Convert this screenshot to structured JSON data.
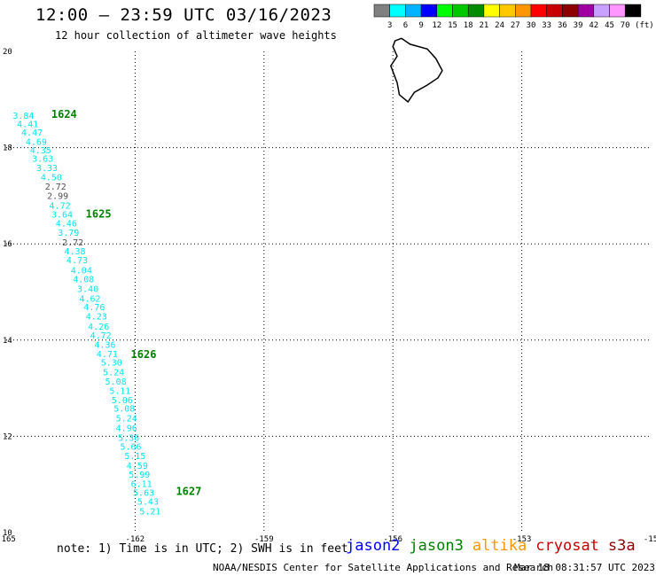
{
  "title": "12:00 – 23:59 UTC 03/16/2023",
  "subtitle": "12 hour collection of altimeter wave heights",
  "legend": {
    "colors": [
      "#808080",
      "#00ffff",
      "#00b4ff",
      "#0000ff",
      "#00ff00",
      "#00c800",
      "#008c00",
      "#ffff00",
      "#ffc800",
      "#ff9600",
      "#ff0000",
      "#c80000",
      "#8c0000",
      "#a000a0",
      "#c8a0ff",
      "#ff96ff",
      "#000000"
    ],
    "labels": [
      "3",
      "6",
      "9",
      "12",
      "15",
      "18",
      "21",
      "24",
      "27",
      "30",
      "33",
      "36",
      "39",
      "42",
      "45",
      "70"
    ],
    "unit": "(ft)"
  },
  "axes": {
    "x_labels": [
      "-165",
      "-162",
      "-159",
      "-156",
      "-153",
      "-15"
    ],
    "y_labels": [
      "20",
      "18",
      "16",
      "14",
      "12",
      "10"
    ],
    "x_range": [
      -165,
      -150
    ],
    "y_range": [
      10,
      20
    ]
  },
  "colors": {
    "cyan": "#00e5ee",
    "gray": "#505050",
    "green": "#008000",
    "land": "#000000"
  },
  "track": [
    {
      "v": "3.84",
      "lon": -164.6,
      "lat": 18.6,
      "c": "cyan"
    },
    {
      "v": "4.41",
      "lon": -164.5,
      "lat": 18.43,
      "c": "cyan"
    },
    {
      "v": "4.47",
      "lon": -164.4,
      "lat": 18.25,
      "c": "cyan"
    },
    {
      "v": "4.69",
      "lon": -164.3,
      "lat": 18.06,
      "c": "cyan"
    },
    {
      "v": "4.35",
      "lon": -164.2,
      "lat": 17.88,
      "c": "cyan"
    },
    {
      "v": "3.63",
      "lon": -164.15,
      "lat": 17.71,
      "c": "cyan"
    },
    {
      "v": "3.33",
      "lon": -164.05,
      "lat": 17.51,
      "c": "cyan"
    },
    {
      "v": "4.50",
      "lon": -163.95,
      "lat": 17.32,
      "c": "cyan"
    },
    {
      "v": "2.72",
      "lon": -163.85,
      "lat": 17.13,
      "c": "gray"
    },
    {
      "v": "2.99",
      "lon": -163.8,
      "lat": 16.93,
      "c": "gray"
    },
    {
      "v": "4.72",
      "lon": -163.75,
      "lat": 16.73,
      "c": "cyan"
    },
    {
      "v": "3.64",
      "lon": -163.7,
      "lat": 16.55,
      "c": "cyan"
    },
    {
      "v": "4.46",
      "lon": -163.6,
      "lat": 16.36,
      "c": "cyan"
    },
    {
      "v": "3.79",
      "lon": -163.55,
      "lat": 16.17,
      "c": "cyan"
    },
    {
      "v": "2.72",
      "lon": -163.45,
      "lat": 15.97,
      "c": "gray"
    },
    {
      "v": "4.38",
      "lon": -163.4,
      "lat": 15.78,
      "c": "cyan"
    },
    {
      "v": "4.73",
      "lon": -163.35,
      "lat": 15.6,
      "c": "cyan"
    },
    {
      "v": "4.04",
      "lon": -163.25,
      "lat": 15.39,
      "c": "cyan"
    },
    {
      "v": "4.08",
      "lon": -163.2,
      "lat": 15.2,
      "c": "cyan"
    },
    {
      "v": "3.40",
      "lon": -163.1,
      "lat": 15.0,
      "c": "cyan"
    },
    {
      "v": "4.62",
      "lon": -163.05,
      "lat": 14.8,
      "c": "cyan"
    },
    {
      "v": "4.76",
      "lon": -162.95,
      "lat": 14.62,
      "c": "cyan"
    },
    {
      "v": "4.23",
      "lon": -162.9,
      "lat": 14.43,
      "c": "cyan"
    },
    {
      "v": "4.26",
      "lon": -162.85,
      "lat": 14.22,
      "c": "cyan"
    },
    {
      "v": "4.72",
      "lon": -162.8,
      "lat": 14.03,
      "c": "cyan"
    },
    {
      "v": "4.36",
      "lon": -162.7,
      "lat": 13.84,
      "c": "cyan"
    },
    {
      "v": "4.71",
      "lon": -162.65,
      "lat": 13.65,
      "c": "cyan"
    },
    {
      "v": "5.30",
      "lon": -162.55,
      "lat": 13.47,
      "c": "cyan"
    },
    {
      "v": "5.24",
      "lon": -162.5,
      "lat": 13.27,
      "c": "cyan"
    },
    {
      "v": "5.08",
      "lon": -162.45,
      "lat": 13.08,
      "c": "cyan"
    },
    {
      "v": "5.11",
      "lon": -162.35,
      "lat": 12.88,
      "c": "cyan"
    },
    {
      "v": "5.06",
      "lon": -162.3,
      "lat": 12.69,
      "c": "cyan"
    },
    {
      "v": "5.08",
      "lon": -162.25,
      "lat": 12.51,
      "c": "cyan"
    },
    {
      "v": "5.24",
      "lon": -162.2,
      "lat": 12.31,
      "c": "cyan"
    },
    {
      "v": "4.96",
      "lon": -162.2,
      "lat": 12.11,
      "c": "cyan"
    },
    {
      "v": "5.36",
      "lon": -162.15,
      "lat": 11.91,
      "c": "cyan"
    },
    {
      "v": "5.66",
      "lon": -162.1,
      "lat": 11.72,
      "c": "cyan"
    },
    {
      "v": "5.15",
      "lon": -162.0,
      "lat": 11.53,
      "c": "cyan"
    },
    {
      "v": "4.59",
      "lon": -161.95,
      "lat": 11.33,
      "c": "cyan"
    },
    {
      "v": "5.99",
      "lon": -161.9,
      "lat": 11.14,
      "c": "cyan"
    },
    {
      "v": "6.11",
      "lon": -161.85,
      "lat": 10.95,
      "c": "cyan"
    },
    {
      "v": "5.63",
      "lon": -161.8,
      "lat": 10.76,
      "c": "cyan"
    },
    {
      "v": "5.43",
      "lon": -161.7,
      "lat": 10.58,
      "c": "cyan"
    },
    {
      "v": "5.21",
      "lon": -161.65,
      "lat": 10.38,
      "c": "cyan"
    }
  ],
  "time_labels": [
    {
      "t": "1624",
      "lon": -163.95,
      "lat": 18.62
    },
    {
      "t": "1625",
      "lon": -163.15,
      "lat": 16.55
    },
    {
      "t": "1626",
      "lon": -162.1,
      "lat": 13.63
    },
    {
      "t": "1627",
      "lon": -161.05,
      "lat": 10.78
    }
  ],
  "note": "note: 1) Time is in UTC; 2) SWH is in feet",
  "satellites": [
    {
      "name": "jason2",
      "color": "#0000ff"
    },
    {
      "name": "jason3",
      "color": "#008000"
    },
    {
      "name": "altika",
      "color": "#ff9600"
    },
    {
      "name": "cryosat",
      "color": "#c80000"
    },
    {
      "name": "s3a",
      "color": "#8c0000"
    }
  ],
  "footer_org": "NOAA/NESDIS Center for Satellite Applications and Research",
  "footer_date": "Mar 18 08:31:57 UTC 2023"
}
